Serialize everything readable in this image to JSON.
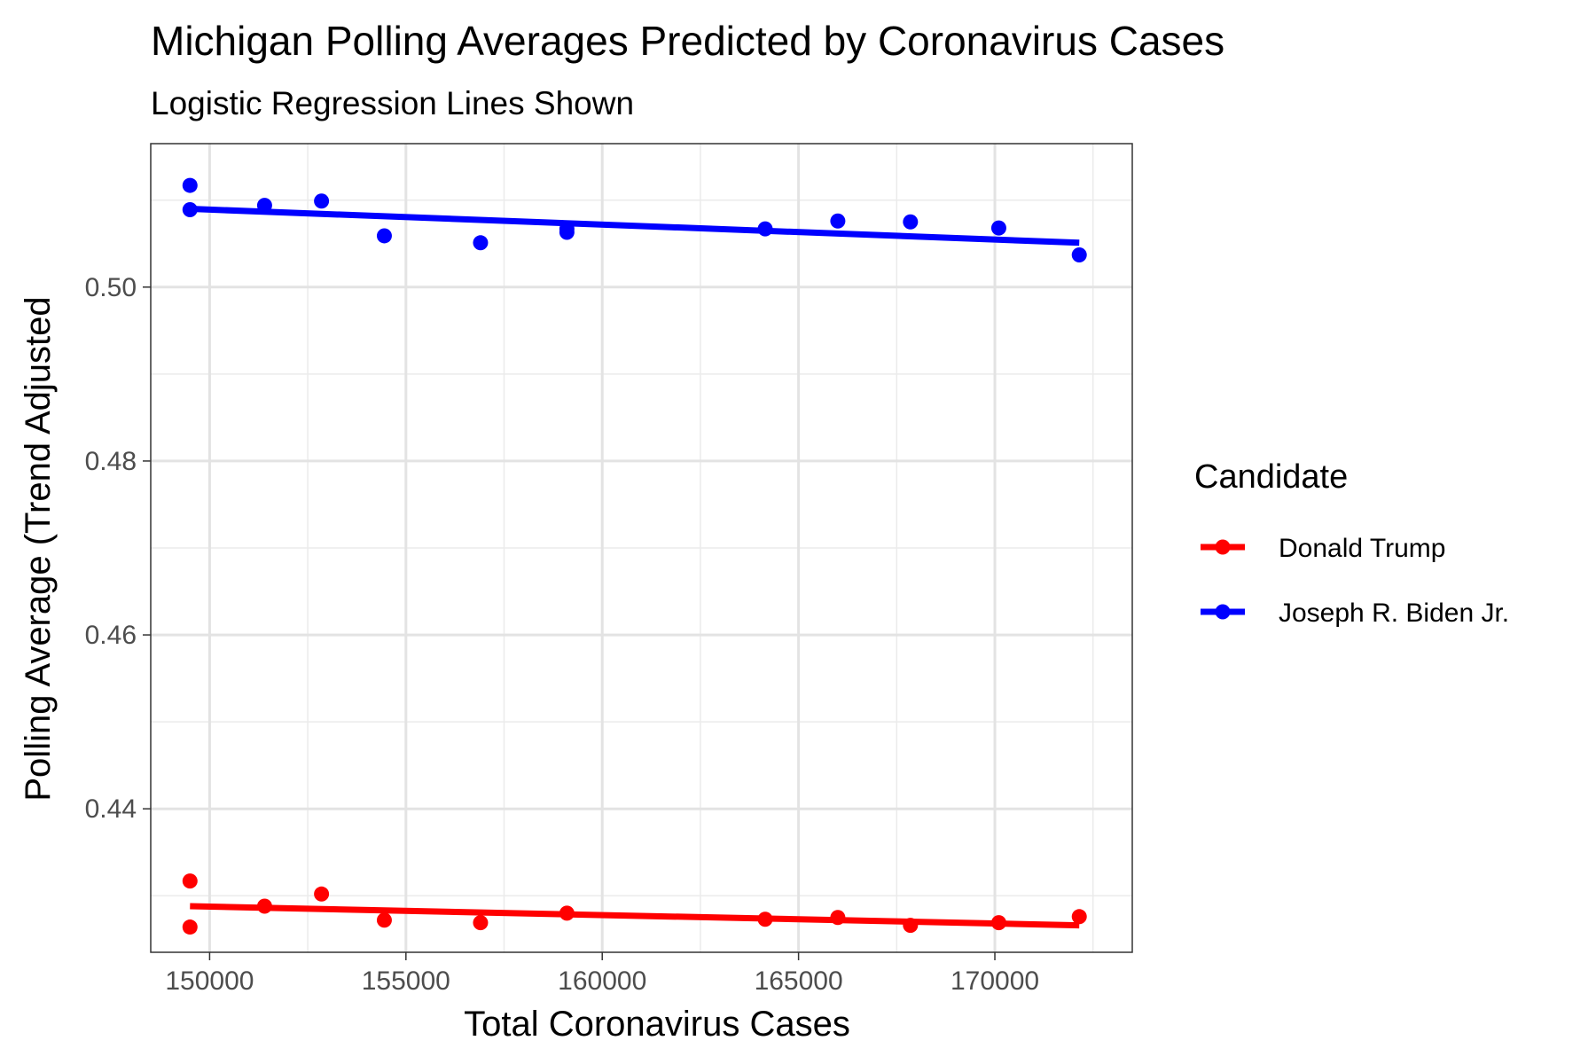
{
  "chart_data": {
    "type": "scatter",
    "title": "Michigan Polling Averages Predicted by Coronavirus Cases",
    "subtitle": "Logistic Regression Lines Shown",
    "xlabel": "Total Coronavirus Cases",
    "ylabel": "Polling Average (Trend Adjusted",
    "xlim": [
      148500,
      173500
    ],
    "ylim": [
      0.4235,
      0.5165
    ],
    "x_ticks": [
      150000,
      155000,
      160000,
      165000,
      170000
    ],
    "x_tick_labels": [
      "150000",
      "155000",
      "160000",
      "165000",
      "170000"
    ],
    "y_ticks": [
      0.44,
      0.46,
      0.48,
      0.5
    ],
    "y_tick_labels": [
      "0.44",
      "0.46",
      "0.48",
      "0.50"
    ],
    "grid": true,
    "legend": {
      "title": "Candidate",
      "position": "right"
    },
    "series": [
      {
        "name": "Donald Trump",
        "color": "#ff0000",
        "points": [
          [
            149500,
            0.4317
          ],
          [
            149500,
            0.4264
          ],
          [
            151400,
            0.4288
          ],
          [
            152850,
            0.4302
          ],
          [
            154450,
            0.4272
          ],
          [
            156900,
            0.4269
          ],
          [
            159100,
            0.428
          ],
          [
            164150,
            0.4273
          ],
          [
            166000,
            0.4275
          ],
          [
            167850,
            0.4266
          ],
          [
            170100,
            0.4269
          ],
          [
            172150,
            0.4276
          ]
        ],
        "fit": [
          [
            149500,
            0.4288
          ],
          [
            172150,
            0.4266
          ]
        ]
      },
      {
        "name": "Joseph R. Biden Jr.",
        "color": "#0000ff",
        "points": [
          [
            149500,
            0.5117
          ],
          [
            149500,
            0.5089
          ],
          [
            151400,
            0.5094
          ],
          [
            152850,
            0.5099
          ],
          [
            154450,
            0.5059
          ],
          [
            156900,
            0.5051
          ],
          [
            159100,
            0.5063
          ],
          [
            159100,
            0.5067
          ],
          [
            164150,
            0.5067
          ],
          [
            166000,
            0.5076
          ],
          [
            167850,
            0.5075
          ],
          [
            170100,
            0.5068
          ],
          [
            172150,
            0.5037
          ]
        ],
        "fit": [
          [
            149500,
            0.509
          ],
          [
            172150,
            0.5051
          ]
        ]
      }
    ]
  }
}
